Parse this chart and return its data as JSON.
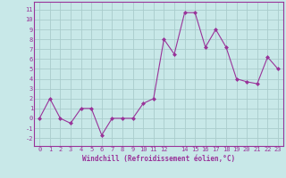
{
  "x": [
    0,
    1,
    2,
    3,
    4,
    5,
    6,
    7,
    8,
    9,
    10,
    11,
    12,
    13,
    14,
    15,
    16,
    17,
    18,
    19,
    20,
    21,
    22,
    23
  ],
  "y": [
    0,
    2,
    0,
    -0.5,
    1,
    1,
    -1.7,
    0,
    0,
    0,
    1.5,
    2,
    8,
    6.5,
    10.7,
    10.7,
    7.2,
    9,
    7.2,
    4,
    3.7,
    3.5,
    6.2,
    5
  ],
  "line_color": "#993399",
  "marker_color": "#993399",
  "bg_color": "#c8e8e8",
  "grid_color": "#aacccc",
  "xlabel": "Windchill (Refroidissement éolien,°C)",
  "xtick_labels": [
    "0",
    "1",
    "2",
    "3",
    "4",
    "5",
    "6",
    "7",
    "8",
    "9",
    "10",
    "11",
    "12",
    "",
    "14",
    "15",
    "16",
    "17",
    "18",
    "19",
    "20",
    "21",
    "22",
    "23"
  ],
  "xticks": [
    0,
    1,
    2,
    3,
    4,
    5,
    6,
    7,
    8,
    9,
    10,
    11,
    12,
    13,
    14,
    15,
    16,
    17,
    18,
    19,
    20,
    21,
    22,
    23
  ],
  "yticks": [
    -2,
    -1,
    0,
    1,
    2,
    3,
    4,
    5,
    6,
    7,
    8,
    9,
    10,
    11
  ],
  "ylim": [
    -2.8,
    11.8
  ],
  "xlim": [
    -0.5,
    23.5
  ]
}
